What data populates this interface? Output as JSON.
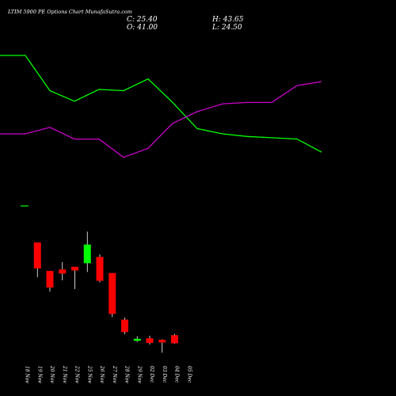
{
  "header": {
    "title": "LTIM 5900  PE Options  Chart MunafaSutra.com",
    "close": "C: 25.40",
    "high": "H: 43.65",
    "open": "O: 41.00",
    "low": "L: 24.50"
  },
  "colors": {
    "background": "#000000",
    "up": "#00ff00",
    "down": "#ff0000",
    "line_green": "#00ff00",
    "line_magenta": "#cc00cc",
    "text": "#ffffff"
  },
  "chart_data": {
    "type": "candlestick",
    "categories": [
      "18 Nov",
      "19 Nov",
      "20 Nov",
      "21 Nov",
      "22 Nov",
      "25 Nov",
      "26 Nov",
      "27 Nov",
      "28 Nov",
      "29 Nov",
      "02 Dec",
      "03 Dec",
      "04 Dec",
      "05 Dec"
    ],
    "candles": [
      {
        "date": "18 Nov",
        "open": null,
        "high": null,
        "low": null,
        "close": null
      },
      {
        "date": "19 Nov",
        "open": 220,
        "high": 220,
        "low": 153,
        "close": 170
      },
      {
        "date": "20 Nov",
        "open": 165,
        "high": 165,
        "low": 125,
        "close": 133
      },
      {
        "date": "21 Nov",
        "open": 168,
        "high": 182,
        "low": 147,
        "close": 160
      },
      {
        "date": "22 Nov",
        "open": 173,
        "high": 173,
        "low": 130,
        "close": 166
      },
      {
        "date": "25 Nov",
        "open": 180,
        "high": 241,
        "low": 163,
        "close": 216
      },
      {
        "date": "26 Nov",
        "open": 192,
        "high": 197,
        "low": 143,
        "close": 146
      },
      {
        "date": "27 Nov",
        "open": 161,
        "high": 161,
        "low": 76,
        "close": 82
      },
      {
        "date": "28 Nov",
        "open": 71,
        "high": 75,
        "low": 43,
        "close": 47
      },
      {
        "date": "29 Nov",
        "open": 32,
        "high": 39,
        "low": 28,
        "close": 34
      },
      {
        "date": "02 Dec",
        "open": 35,
        "high": 40,
        "low": 23,
        "close": 26
      },
      {
        "date": "03 Dec",
        "open": 32,
        "high": 33,
        "low": 7,
        "close": 27
      },
      {
        "date": "04 Dec",
        "open": 41,
        "high": 43.65,
        "low": 24.5,
        "close": 25.4
      },
      {
        "date": "05 Dec",
        "open": null,
        "high": null,
        "low": null,
        "close": null
      }
    ],
    "series": [
      {
        "values": [
          1.0,
          1.0,
          0.73,
          0.65,
          0.74,
          0.73,
          0.82,
          0.64,
          0.44,
          0.4,
          0.38,
          0.37,
          0.36,
          0.26
        ]
      },
      {
        "values": [
          0.4,
          0.4,
          0.45,
          0.36,
          0.36,
          0.22,
          0.29,
          0.48,
          0.57,
          0.63,
          0.64,
          0.64,
          0.77,
          0.8
        ]
      }
    ]
  }
}
